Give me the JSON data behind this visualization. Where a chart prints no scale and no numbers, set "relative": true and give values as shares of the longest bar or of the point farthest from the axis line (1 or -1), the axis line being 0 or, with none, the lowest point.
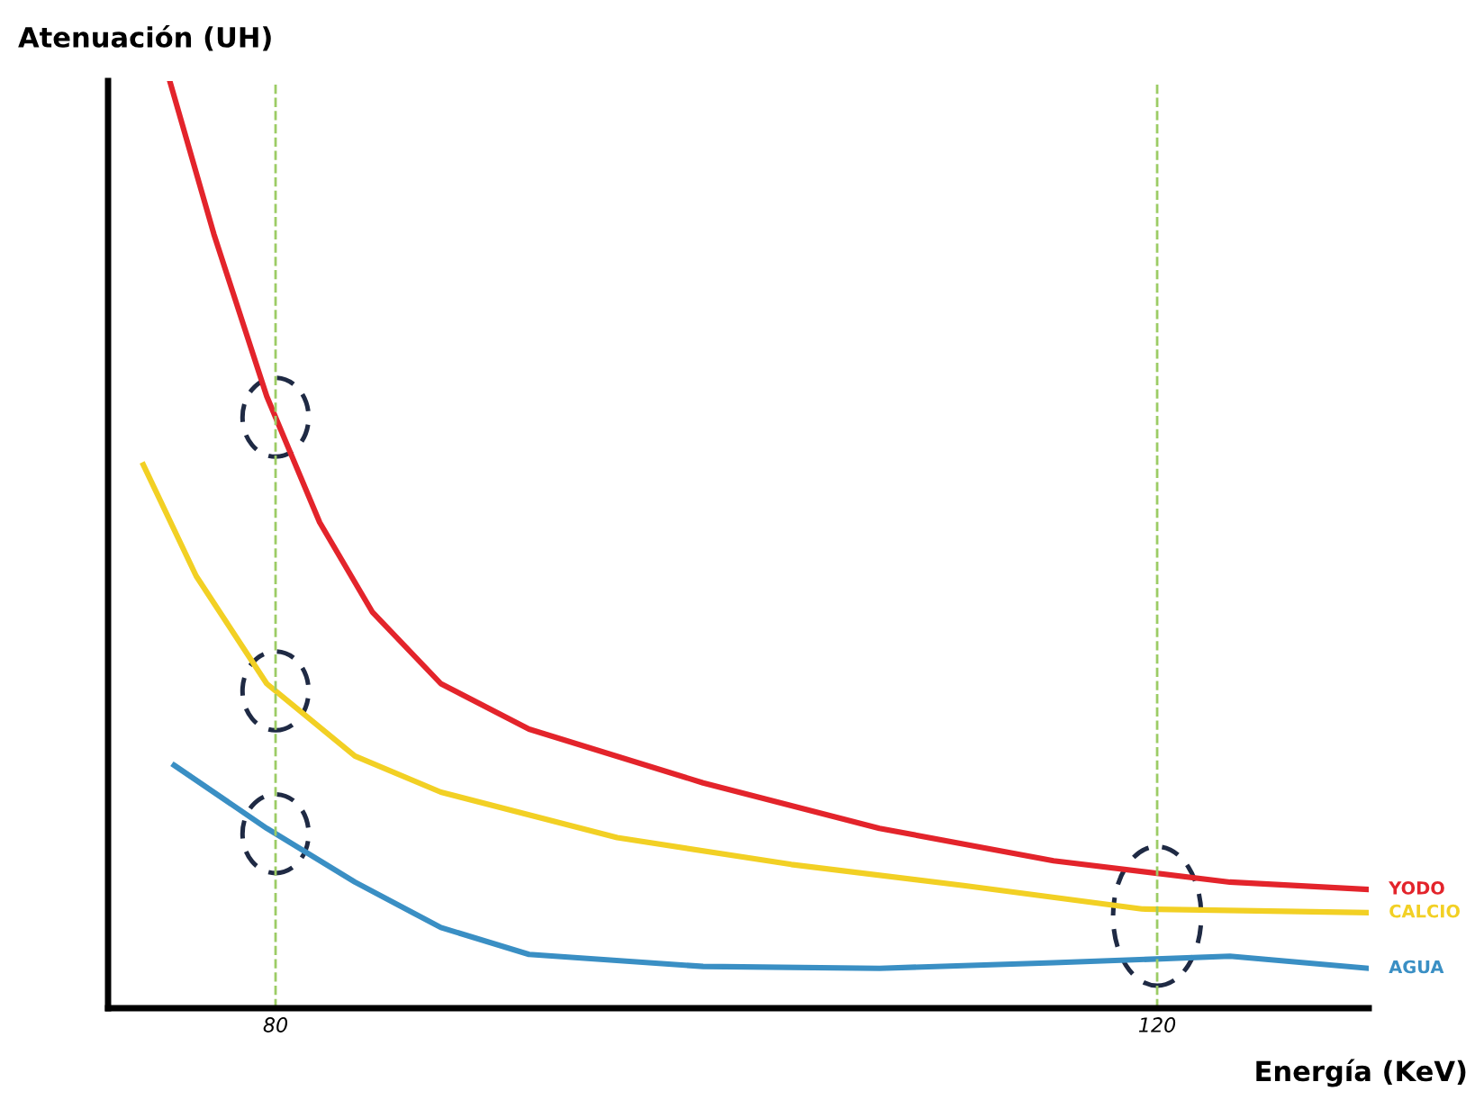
{
  "chart_data": {
    "type": "line",
    "relative": true,
    "xlabel": "Energía (KeV)",
    "ylabel": "Atenuación (UH)",
    "xlim": [
      72.4,
      129.6
    ],
    "xticks": [
      80,
      120
    ],
    "tick_labels": "x",
    "grid": false,
    "legend": false,
    "marker": "none",
    "line_style": "solid",
    "ref_lines": [
      {
        "axis": "x",
        "value": 80,
        "color": "#9ccc65",
        "line_style": "dashed"
      },
      {
        "axis": "x",
        "value": 120,
        "color": "#9ccc65",
        "line_style": "dashed"
      }
    ],
    "series": [
      {
        "name": "YODO",
        "color": "#e3242b",
        "x": [
          75.2,
          77.2,
          79.6,
          82.0,
          84.4,
          87.5,
          91.5,
          99.4,
          107.4,
          115.3,
          123.3,
          129.6
        ],
        "values": [
          1.0,
          0.835,
          0.66,
          0.524,
          0.427,
          0.35,
          0.301,
          0.243,
          0.194,
          0.159,
          0.136,
          0.128
        ]
      },
      {
        "name": "CALCIO",
        "color": "#f2d024",
        "x": [
          74.0,
          76.4,
          79.6,
          83.6,
          87.5,
          95.5,
          103.4,
          111.3,
          119.3,
          129.6
        ],
        "values": [
          0.586,
          0.466,
          0.35,
          0.272,
          0.233,
          0.184,
          0.155,
          0.132,
          0.107,
          0.103
        ]
      },
      {
        "name": "AGUA",
        "color": "#3a8fc4",
        "x": [
          75.4,
          79.6,
          83.6,
          87.5,
          91.5,
          99.4,
          107.4,
          115.3,
          123.3,
          129.6
        ],
        "values": [
          0.262,
          0.194,
          0.136,
          0.087,
          0.058,
          0.045,
          0.043,
          0.049,
          0.056,
          0.043
        ]
      }
    ]
  }
}
